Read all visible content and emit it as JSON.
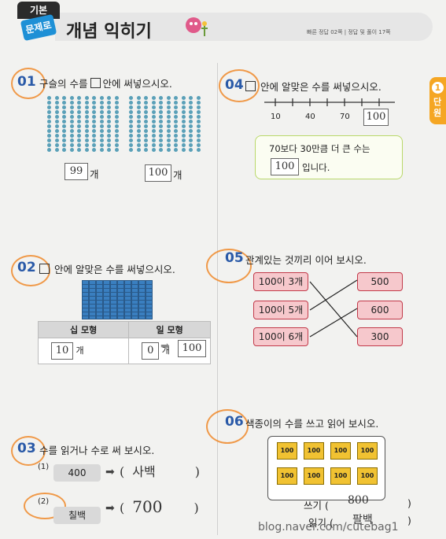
{
  "header": {
    "badge_top": "기본",
    "badge_bottom": "문제로",
    "title": "개념 익히기",
    "ref": "빠른 정답 02쪽 | 정답 및 풀이 17쪽"
  },
  "unit_tab": {
    "num": "1",
    "label": "단원"
  },
  "q01": {
    "num": "01",
    "text": "구슬의 수를  안에 써넣으시오.",
    "left_answer": "99",
    "left_unit": "개",
    "right_answer": "100",
    "right_unit": "개"
  },
  "q02": {
    "num": "02",
    "text": " 안에 알맞은 수를 써넣으시오.",
    "col1": "십 모형",
    "col2": "일 모형",
    "ten_answer": "10",
    "ten_unit": "개",
    "one_answer": "0",
    "one_unit": "개",
    "result": "100"
  },
  "q03": {
    "num": "03",
    "text": "수를 읽거나 수로 써 보시오.",
    "i1": "(1)",
    "v1": "400",
    "a1": "사백",
    "i2": "(2)",
    "v2": "칠백",
    "a2": "700"
  },
  "q04": {
    "num": "04",
    "text": " 안에 알맞은 수를 써넣으시오.",
    "ticks": [
      "10",
      "40",
      "70"
    ],
    "tick_answer": "100",
    "hint_pre": "70보다 30만큼 더 큰 수는",
    "hint_answer": "100",
    "hint_post": "입니다."
  },
  "q05": {
    "num": "05",
    "text": "관계있는 것끼리 이어 보시오.",
    "left": [
      "100이 3개",
      "100이 5개",
      "100이 6개"
    ],
    "right": [
      "500",
      "600",
      "300"
    ]
  },
  "q06": {
    "num": "06",
    "text": "색종이의 수를 쓰고 읽어 보시오.",
    "paper_label": "100",
    "write_label": "쓰기 (",
    "write_answer": "800",
    "read_label": "읽기 (",
    "read_answer": "팔백",
    "close": ")"
  },
  "watermark": "blog.naver.com/cutebag1"
}
